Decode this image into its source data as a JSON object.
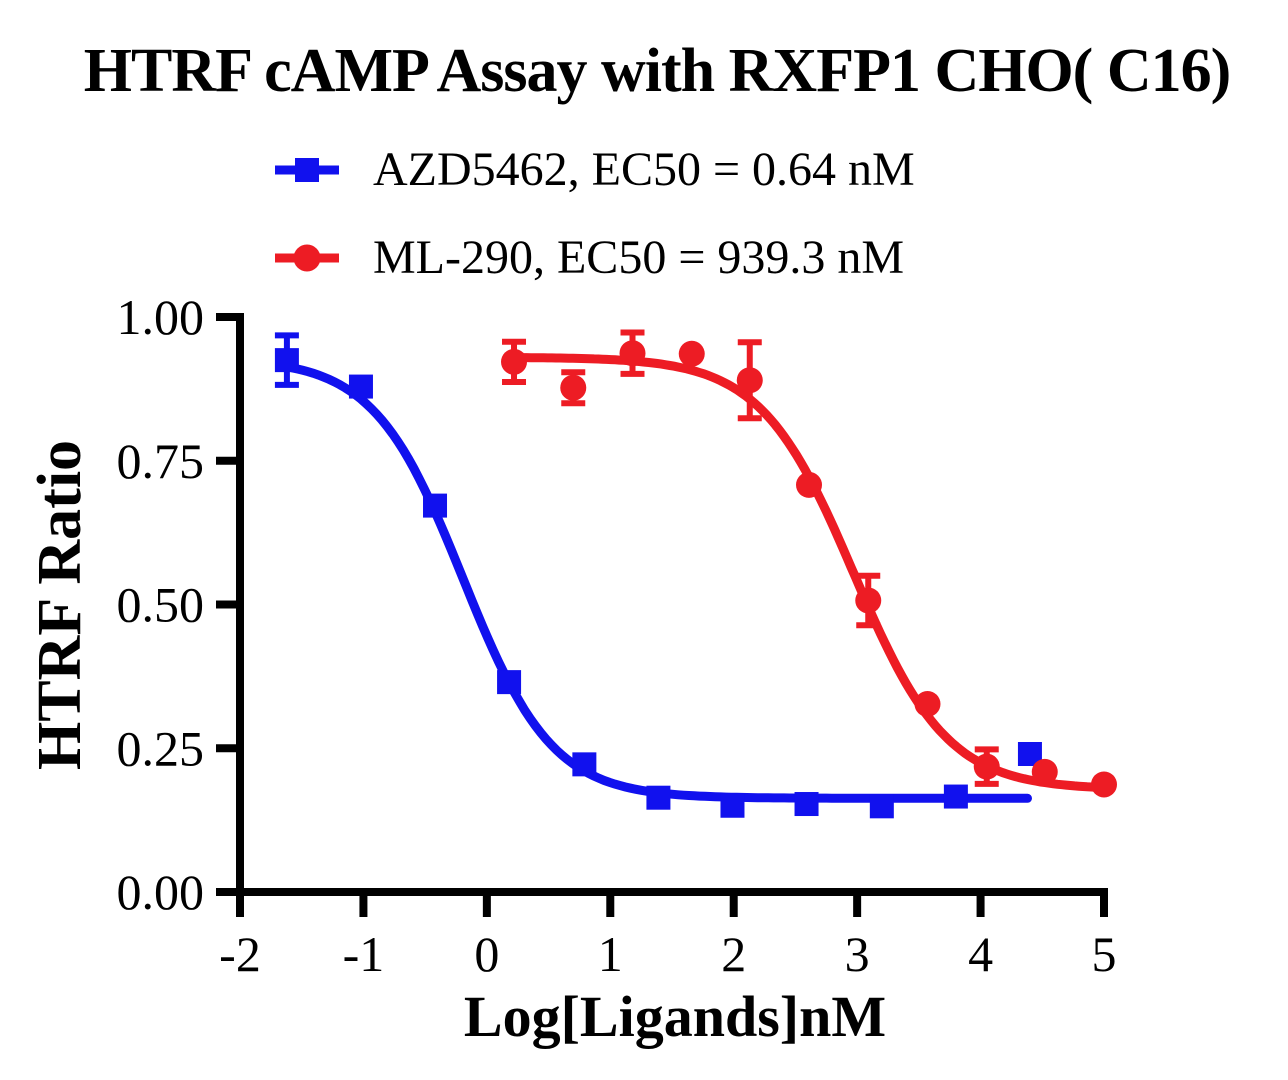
{
  "chart_data": {
    "type": "scatter",
    "title": "HTRF cAMP Assay with RXFP1 CHO( C16)",
    "xlabel": "Log[Ligands]nM",
    "ylabel": "HTRF Ratio",
    "xlim": [
      -2,
      5
    ],
    "ylim": [
      0,
      1
    ],
    "xtick_values": [
      -2,
      -1,
      0,
      1,
      2,
      3,
      4,
      5
    ],
    "xtick_labels": [
      "-2",
      "-1",
      "0",
      "1",
      "2",
      "3",
      "4",
      "5"
    ],
    "ytick_values": [
      0,
      0.25,
      0.5,
      0.75,
      1
    ],
    "ytick_labels": [
      "0.00",
      "0.25",
      "0.50",
      "0.75",
      "1.00"
    ],
    "grid": false,
    "legend_position": "top-center",
    "series": [
      {
        "name": "AZD5462",
        "legend_label": "AZD5462, EC50 = 0.64 nM",
        "ec50_nM": 0.64,
        "color": "#1111EE",
        "marker": "square",
        "points": [
          {
            "x": -1.62,
            "y": 0.925,
            "err": 0.043
          },
          {
            "x": -1.02,
            "y": 0.879
          },
          {
            "x": -0.42,
            "y": 0.672
          },
          {
            "x": 0.18,
            "y": 0.365
          },
          {
            "x": 0.79,
            "y": 0.222
          },
          {
            "x": 1.39,
            "y": 0.164
          },
          {
            "x": 1.99,
            "y": 0.15
          },
          {
            "x": 2.59,
            "y": 0.153
          },
          {
            "x": 3.2,
            "y": 0.149
          },
          {
            "x": 3.8,
            "y": 0.166
          },
          {
            "x": 4.4,
            "y": 0.24
          }
        ],
        "fit": {
          "top": 0.928,
          "bottom": 0.163,
          "logEC50": -0.194,
          "hill": 1.2,
          "xstart": -1.62,
          "xend": 4.38
        }
      },
      {
        "name": "ML-290",
        "legend_label": "ML-290, EC50 = 939.3 nM",
        "ec50_nM": 939.3,
        "color": "#ED1C24",
        "marker": "circle",
        "points": [
          {
            "x": 0.22,
            "y": 0.922,
            "err": 0.035
          },
          {
            "x": 0.7,
            "y": 0.877,
            "err": 0.027
          },
          {
            "x": 1.18,
            "y": 0.937,
            "err": 0.036
          },
          {
            "x": 1.66,
            "y": 0.936
          },
          {
            "x": 2.13,
            "y": 0.89,
            "err": 0.066
          },
          {
            "x": 2.61,
            "y": 0.708
          },
          {
            "x": 3.09,
            "y": 0.507,
            "err": 0.043
          },
          {
            "x": 3.57,
            "y": 0.327
          },
          {
            "x": 4.05,
            "y": 0.218,
            "err": 0.03
          },
          {
            "x": 4.52,
            "y": 0.209
          },
          {
            "x": 5.0,
            "y": 0.187
          }
        ],
        "fit": {
          "top": 0.93,
          "bottom": 0.178,
          "logEC50": 2.973,
          "hill": 1.15,
          "xstart": 0.22,
          "xend": 5.0
        }
      }
    ]
  }
}
